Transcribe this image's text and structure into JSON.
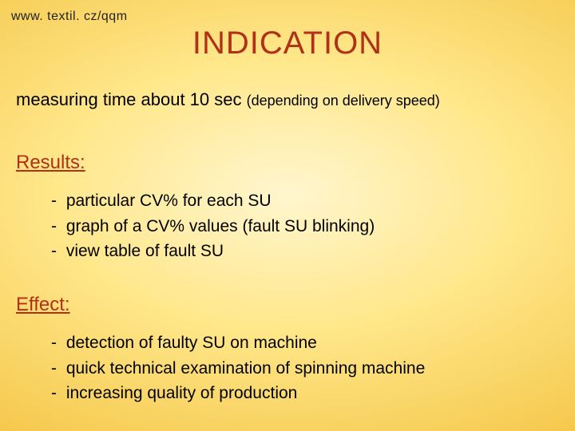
{
  "colors": {
    "background_center": "#fff6cf",
    "background_mid": "#ffe78a",
    "background_edge": "#f4c648",
    "heading_color": "#b03018",
    "body_text_color": "#000000",
    "url_color": "#232323"
  },
  "typography": {
    "font_family": "Verdana",
    "title_fontsize_pt": 30,
    "section_fontsize_pt": 18,
    "body_fontsize_pt": 16,
    "url_fontsize_pt": 12
  },
  "url": "www. textil. cz/qqm",
  "title": "INDICATION",
  "subtitle": {
    "main": "measuring time about 10 sec ",
    "note": "(depending on delivery speed)"
  },
  "sections": {
    "results": {
      "heading": "Results:",
      "items": [
        "particular CV% for each SU",
        "graph of a CV% values (fault SU blinking)",
        "view table of fault SU"
      ]
    },
    "effect": {
      "heading": "Effect:",
      "items": [
        "detection of faulty SU on machine",
        "quick technical examination of spinning machine",
        "increasing quality of production"
      ]
    }
  }
}
